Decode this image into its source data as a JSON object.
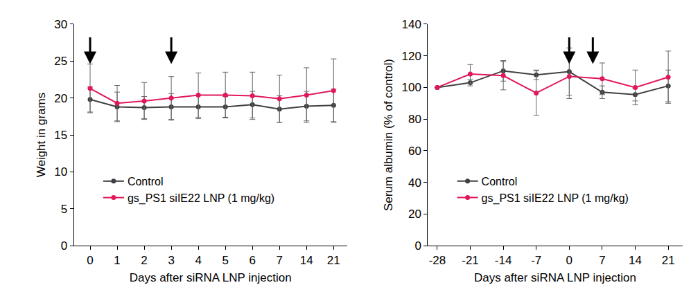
{
  "chart_data": [
    {
      "type": "line",
      "x_label": "Days after siRNA LNP injection",
      "y_label": "Weight in grams",
      "categories": [
        "0",
        "1",
        "2",
        "3",
        "4",
        "5",
        "6",
        "7",
        "14",
        "21"
      ],
      "ylim": [
        0,
        30
      ],
      "yticks": [
        0,
        5,
        10,
        15,
        20,
        25,
        30
      ],
      "grid": false,
      "legend": "lower left",
      "arrows_at": [
        "0",
        "3"
      ],
      "series": [
        {
          "name": "Control",
          "color": "#404040",
          "marker": "circle",
          "values": [
            19.8,
            18.8,
            18.7,
            18.8,
            18.8,
            18.8,
            19.1,
            18.5,
            18.9,
            19.0
          ],
          "errors": [
            1.7,
            2.0,
            1.5,
            1.8,
            1.6,
            1.4,
            1.8,
            1.8,
            2.0,
            2.2
          ]
        },
        {
          "name": "gs_PS1 siIE22 LNP (1 mg/kg)",
          "color": "#e0185a",
          "marker": "circle",
          "values": [
            21.3,
            19.3,
            19.6,
            20.0,
            20.4,
            20.4,
            20.3,
            19.9,
            20.4,
            21.0
          ],
          "errors": [
            3.3,
            2.4,
            2.5,
            2.9,
            3.0,
            3.1,
            3.2,
            3.2,
            3.7,
            4.3
          ]
        }
      ]
    },
    {
      "type": "line",
      "x_label": "Days after siRNA LNP injection",
      "y_label": "Serum albumin (% of control)",
      "x": [
        -28,
        -21,
        -14,
        -7,
        0,
        7,
        14,
        21
      ],
      "xlim": [
        -30,
        24
      ],
      "xticks": [
        -28,
        -21,
        -14,
        -7,
        0,
        7,
        14,
        21
      ],
      "ylim": [
        0,
        140
      ],
      "yticks": [
        0,
        20,
        40,
        60,
        80,
        100,
        120,
        140
      ],
      "grid": false,
      "legend": "lower left",
      "arrows_at": [
        0,
        5
      ],
      "series": [
        {
          "name": "Control",
          "color": "#404040",
          "marker": "circle",
          "values": [
            100,
            103,
            110.5,
            108,
            110,
            97,
            95.5,
            101
          ],
          "errors": [
            0,
            2,
            6.5,
            3,
            15,
            4,
            4,
            10
          ]
        },
        {
          "name": "gs_PS1 siIE22 LNP (1 mg/kg)",
          "color": "#e0185a",
          "marker": "circle",
          "values": [
            100,
            108.5,
            107.5,
            96.5,
            107,
            105.5,
            100,
            106.5
          ],
          "errors": [
            0,
            6,
            9,
            14,
            14,
            10,
            11,
            16.5
          ]
        }
      ]
    }
  ]
}
